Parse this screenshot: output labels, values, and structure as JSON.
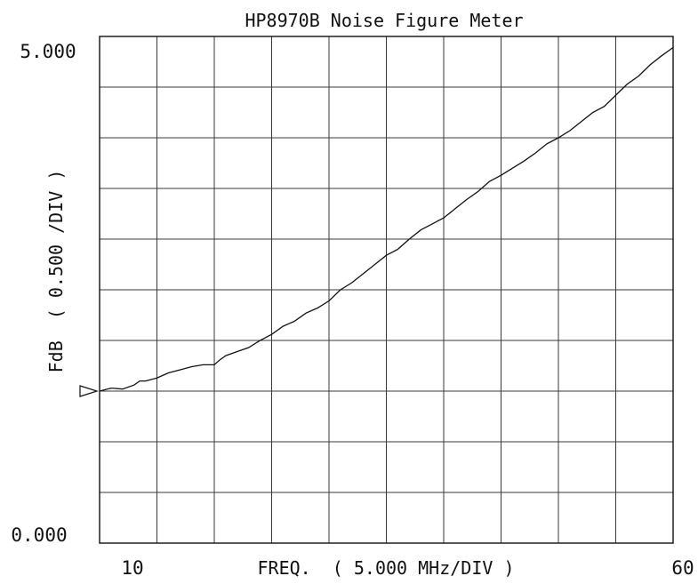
{
  "chart_data": {
    "type": "line",
    "title": "HP8970B Noise Figure Meter",
    "xlabel": "FREQ.  ( 5.000 MHz/DIV )",
    "ylabel": "FdB  ( 0.500 /DIV )",
    "xlim": [
      10,
      60
    ],
    "ylim": [
      0.0,
      5.0
    ],
    "x_tick_labels": [
      "10",
      "60"
    ],
    "y_tick_labels": [
      "0.000",
      "5.000"
    ],
    "x_divisions": 10,
    "y_divisions": 10,
    "grid": true,
    "legend": "none",
    "colors": {
      "trace": "#111111",
      "grid": "#3a3a3a",
      "background": "#ffffff"
    },
    "marker": {
      "shape": "triangle-right",
      "y": 1.5
    },
    "series": [
      {
        "x": [
          10,
          11,
          12,
          13,
          13.5,
          14,
          15,
          16,
          17,
          18,
          19,
          20,
          20.5,
          21,
          22,
          23,
          24,
          25,
          26,
          27,
          28,
          29,
          30,
          31,
          32,
          33,
          34,
          35,
          36,
          37,
          38,
          39,
          40,
          41,
          42,
          43,
          44,
          45,
          46,
          47,
          48,
          49,
          50,
          51,
          52,
          53,
          54,
          55,
          56,
          57,
          58,
          59,
          60
        ],
        "y": [
          1.5,
          1.53,
          1.52,
          1.56,
          1.6,
          1.6,
          1.63,
          1.68,
          1.71,
          1.74,
          1.76,
          1.76,
          1.81,
          1.85,
          1.89,
          1.93,
          2.0,
          2.06,
          2.14,
          2.19,
          2.27,
          2.32,
          2.39,
          2.5,
          2.57,
          2.66,
          2.75,
          2.84,
          2.9,
          3.0,
          3.09,
          3.15,
          3.21,
          3.3,
          3.39,
          3.47,
          3.57,
          3.63,
          3.7,
          3.77,
          3.85,
          3.94,
          4.0,
          4.07,
          4.16,
          4.25,
          4.31,
          4.42,
          4.53,
          4.61,
          4.72,
          4.81,
          4.89
        ]
      }
    ]
  }
}
